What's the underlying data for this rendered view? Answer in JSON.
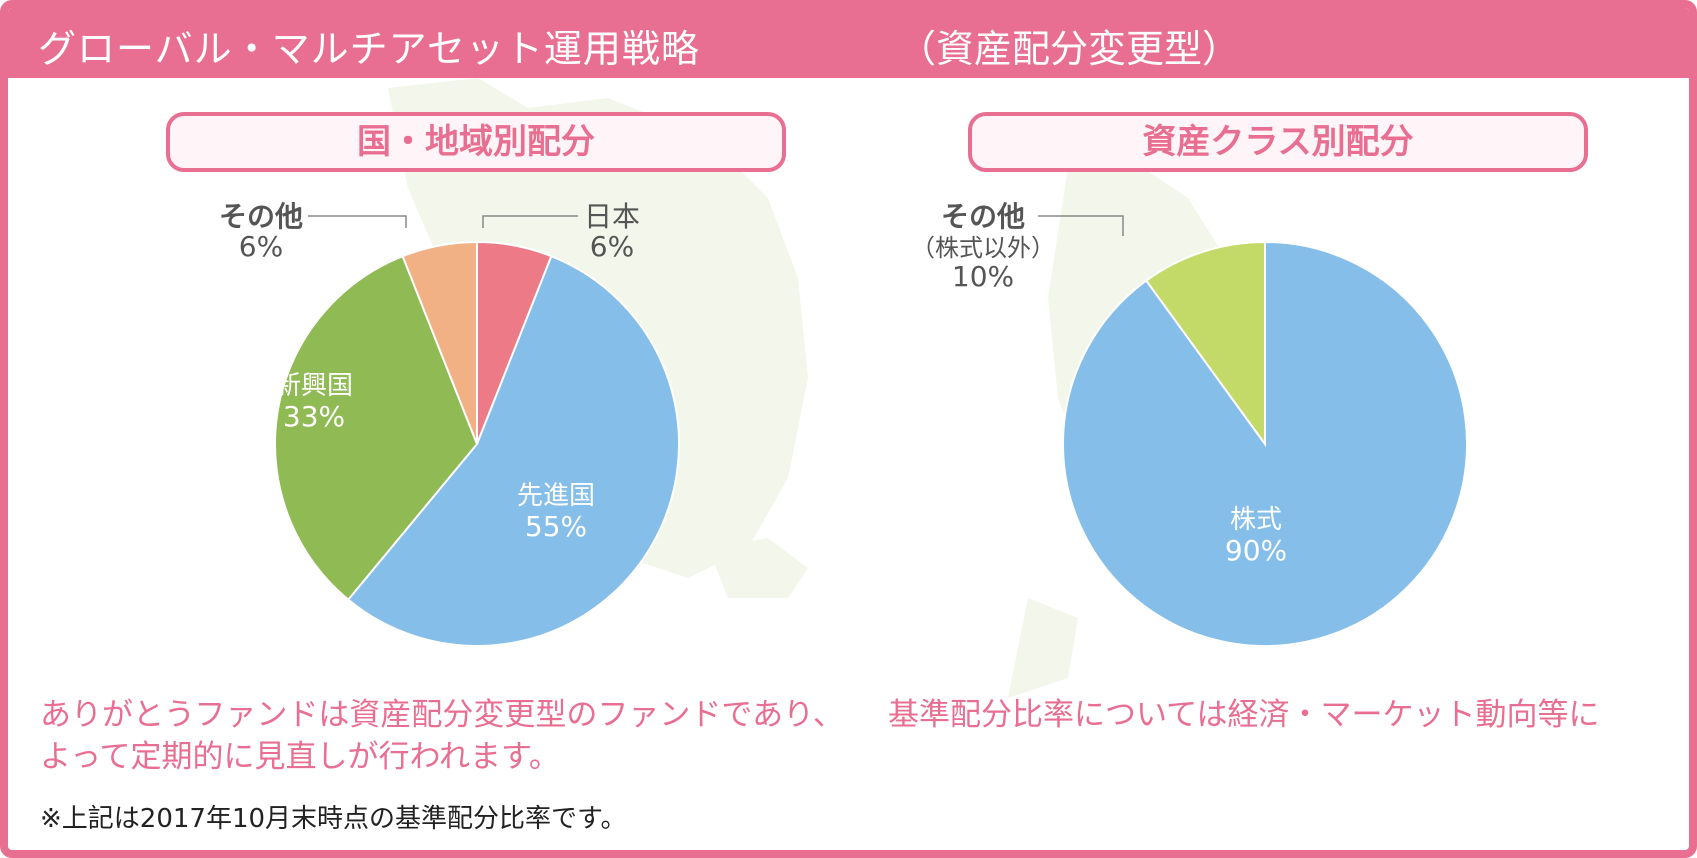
{
  "header": {
    "title": "グローバル・マルチアセット運用戦略",
    "subtitle": "（資産配分変更型）"
  },
  "colors": {
    "accent": "#e86f91",
    "japan": "#ec7a87",
    "developed": "#85bee8",
    "emerging": "#8fba54",
    "other_region": "#f2b085",
    "stocks": "#85bee8",
    "other_asset": "#c3d968"
  },
  "chart_data": [
    {
      "type": "pie",
      "title": "国・地域別配分",
      "slices": [
        {
          "label": "日本",
          "value": 6,
          "value_label": "6%",
          "color": "#ec7a87"
        },
        {
          "label": "先進国",
          "value": 55,
          "value_label": "55%",
          "color": "#85bee8"
        },
        {
          "label": "新興国",
          "value": 33,
          "value_label": "33%",
          "color": "#8fba54"
        },
        {
          "label": "その他",
          "value": 6,
          "value_label": "6%",
          "color": "#f2b085"
        }
      ]
    },
    {
      "type": "pie",
      "title": "資産クラス別配分",
      "slices": [
        {
          "label": "株式",
          "value": 90,
          "value_label": "90%",
          "color": "#85bee8"
        },
        {
          "label": "その他",
          "sublabel": "（株式以外）",
          "value": 10,
          "value_label": "10%",
          "color": "#c3d968"
        }
      ]
    }
  ],
  "description": {
    "left_line1": "ありがとうファンドは資産配分変更型のファンドであり、",
    "left_line2": "よって定期的に見直しが行われます。",
    "right_line1": "基準配分比率については経済・マーケット動向等に"
  },
  "footnote": "※上記は2017年10月末時点の基準配分比率です。"
}
